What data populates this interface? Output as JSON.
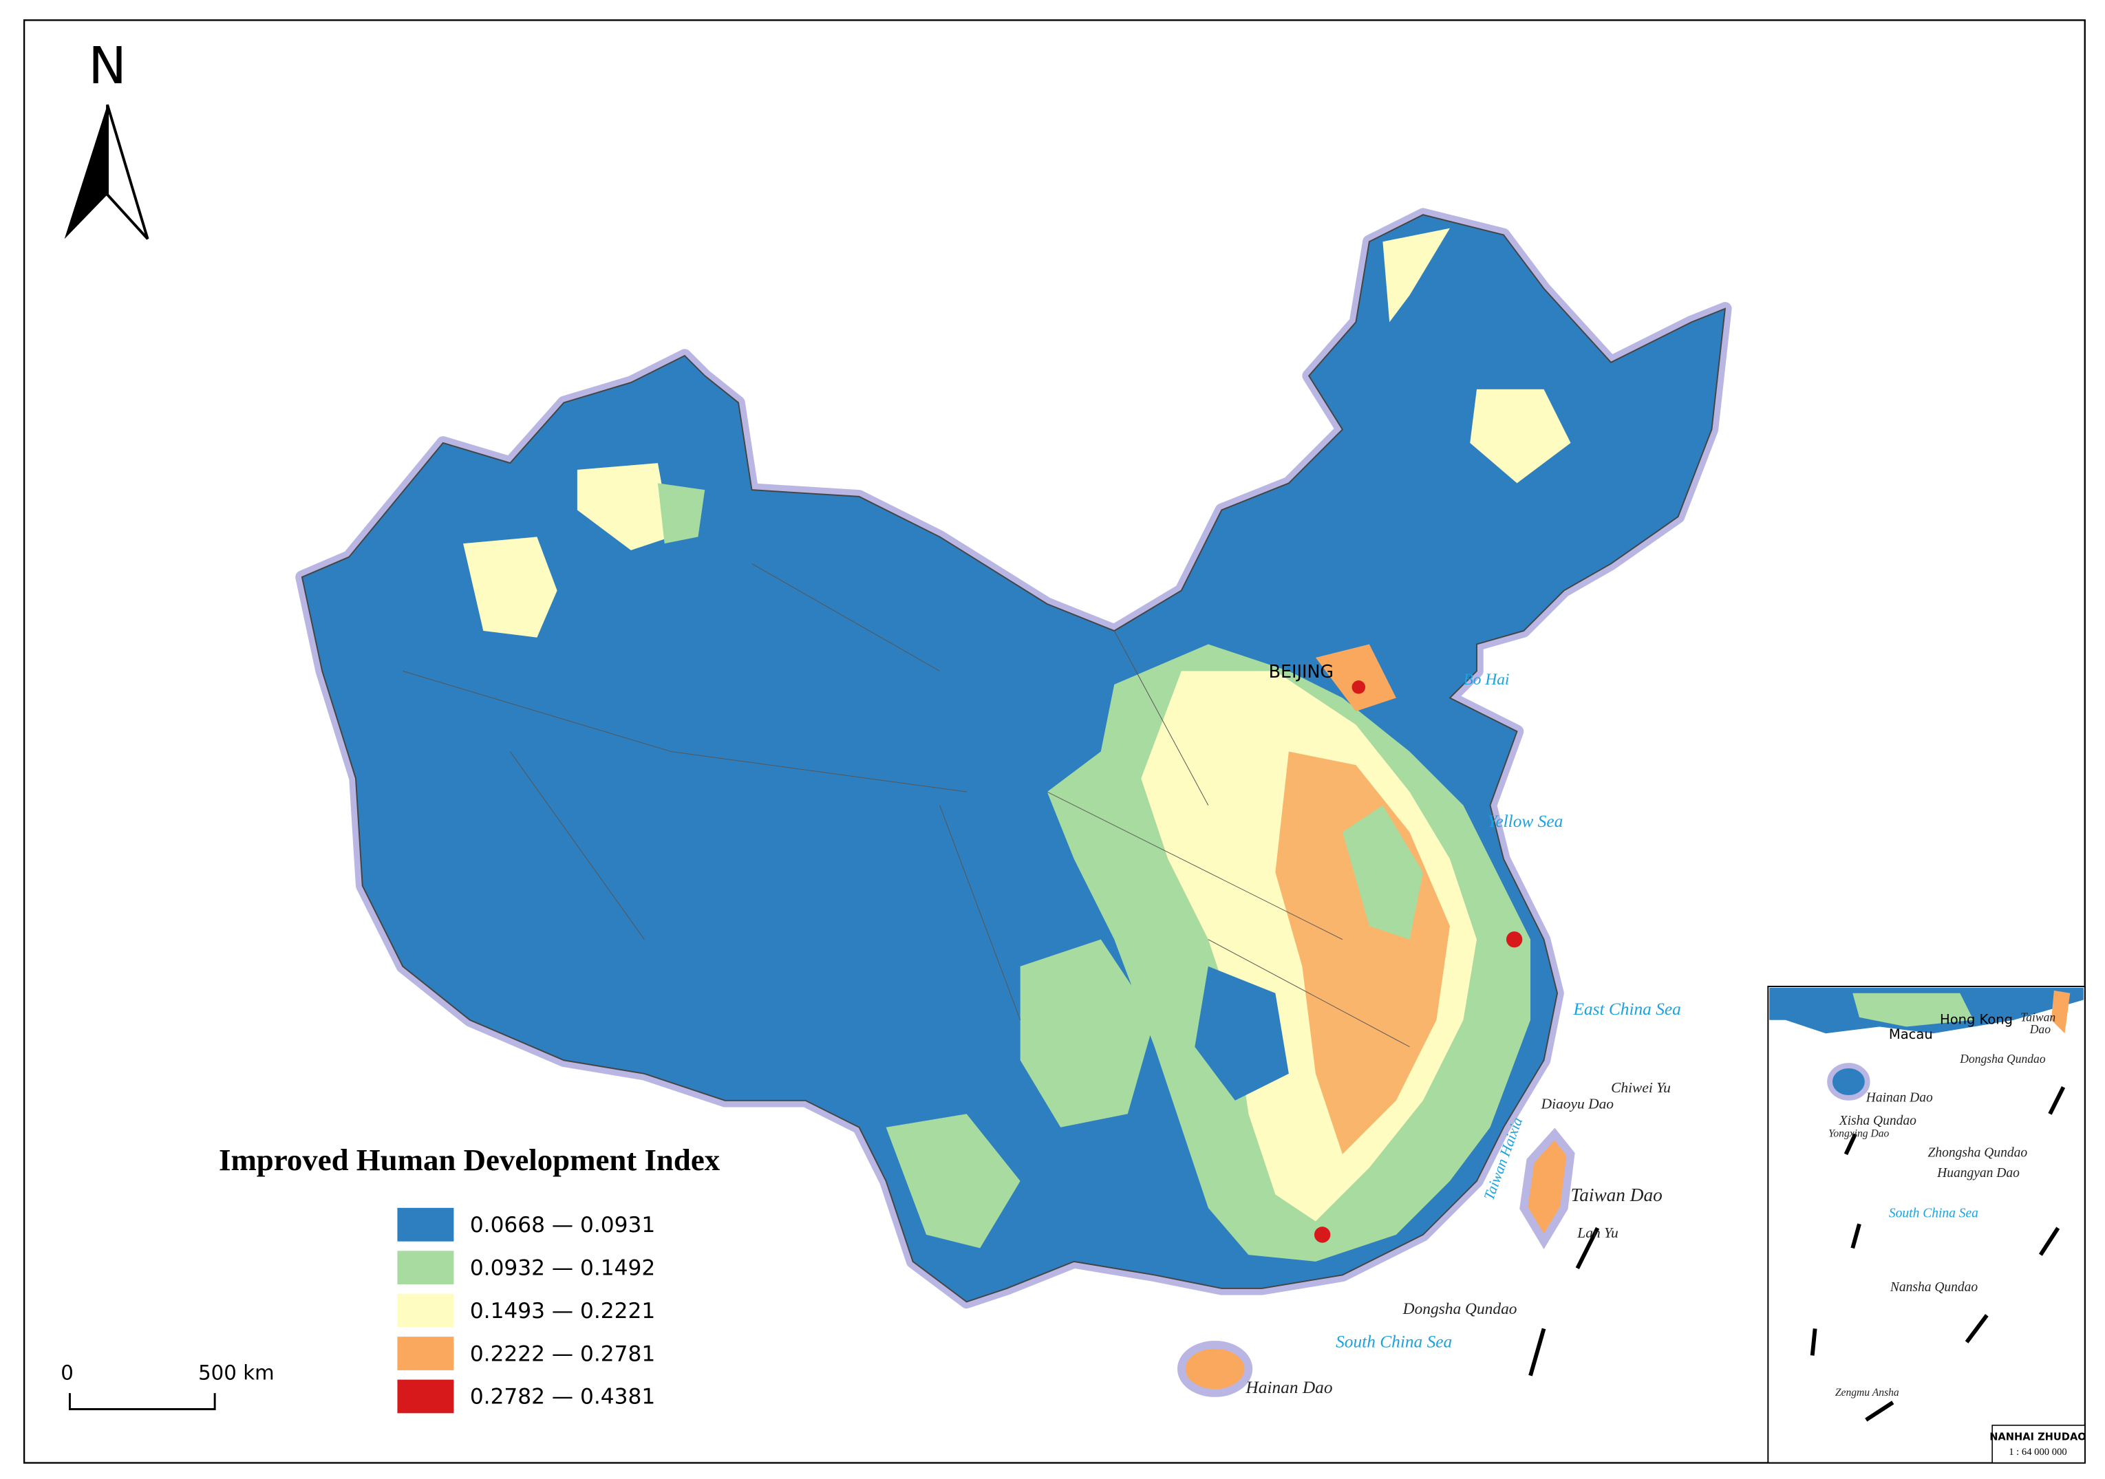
{
  "north_arrow": {
    "label": "N"
  },
  "legend": {
    "title": "Improved Human Development Index",
    "items": [
      {
        "label": "0.0668 — 0.0931",
        "color": "#2e7fbf"
      },
      {
        "label": "0.0932 — 0.1492",
        "color": "#a8dba0"
      },
      {
        "label": "0.1493 — 0.2221",
        "color": "#fefcc0"
      },
      {
        "label": "0.2222 — 0.2781",
        "color": "#f9a85e"
      },
      {
        "label": "0.2782 — 0.4381",
        "color": "#d7191c"
      }
    ]
  },
  "scale_bar": {
    "start": "0",
    "end": "500 km"
  },
  "map_labels": {
    "beijing": "BEIJING",
    "bo_hai": "Bo Hai",
    "yellow_sea": "Yellow Sea",
    "east_china_sea": "East China Sea",
    "diaoyu_dao": "Diaoyu Dao",
    "chiwei_yu": "Chiwei Yu",
    "taiwan_haixia": "Taiwan Haixia",
    "taiwan_dao": "Taiwan Dao",
    "lan_yu": "Lan Yu",
    "dongsha_qundao": "Dongsha Qundao",
    "south_china_sea": "South China Sea",
    "hainan_dao": "Hainan Dao"
  },
  "inset": {
    "hong_kong": "Hong Kong",
    "macau": "Macau",
    "taiwan": "Taiwan",
    "dao": "Dao",
    "dongsha_qundao": "Dongsha Qundao",
    "hainan_dao": "Hainan Dao",
    "xisha_qundao": "Xisha Qundao",
    "yongxing_dao": "Yongxing Dao",
    "zhongsha_qundao": "Zhongsha Qundao",
    "huangyan_dao": "Huangyan Dao",
    "south_china_sea": "South China Sea",
    "nansha_qundao": "Nansha Qundao",
    "zengmu_ansha": "Zengmu Ansha",
    "title": "NANHAI ZHUDAO",
    "scale": "1 : 64 000 000"
  }
}
